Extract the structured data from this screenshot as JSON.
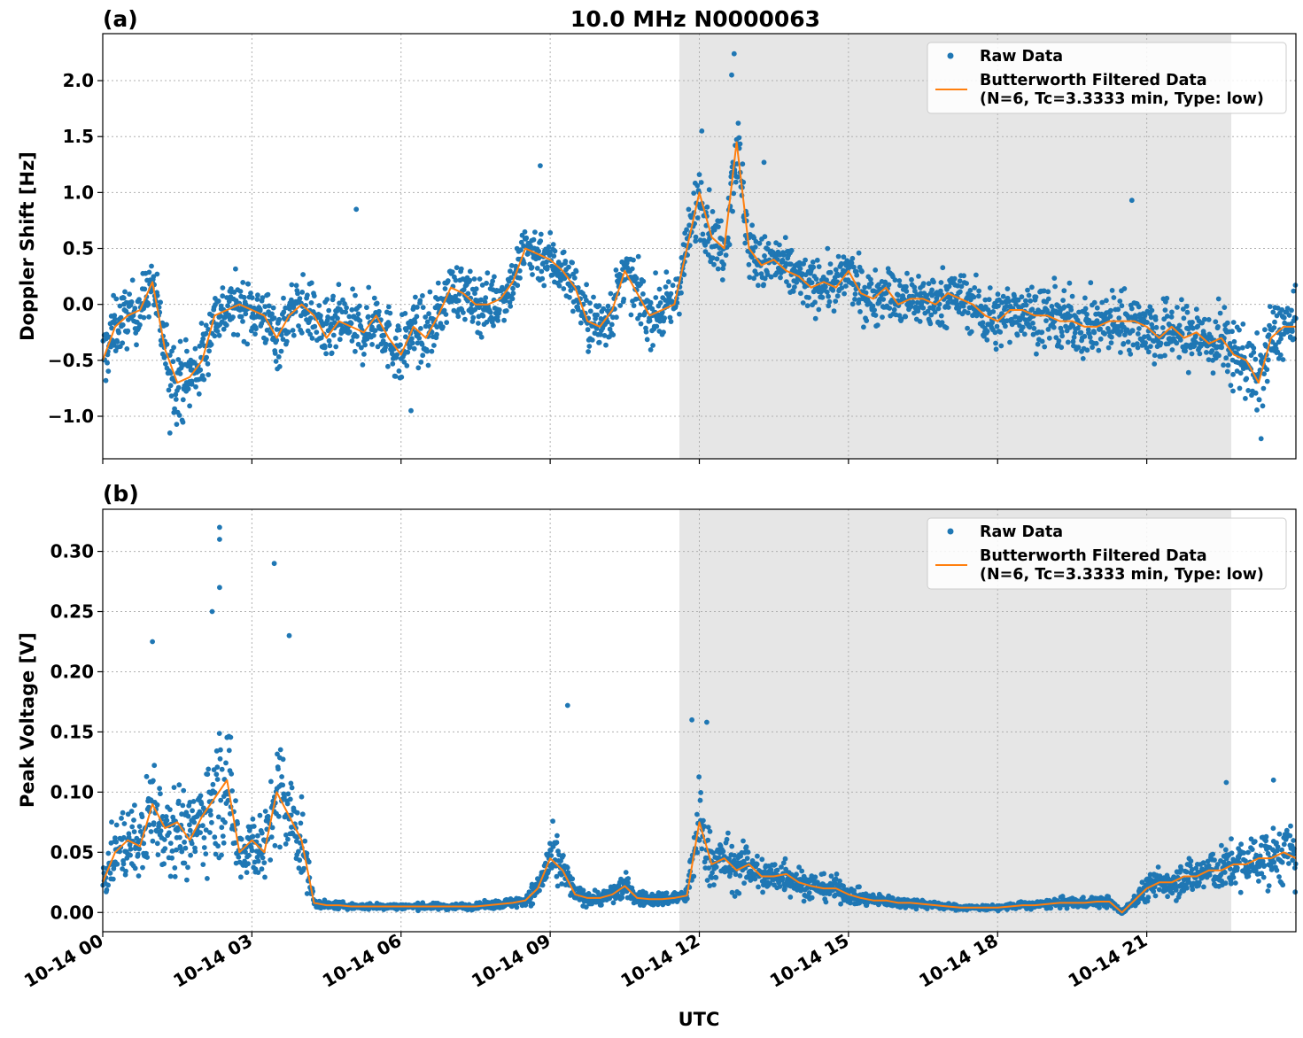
{
  "figure": {
    "title": "10.0 MHz N0000063",
    "xlabel": "UTC",
    "x_tick_labels": [
      "10-14 00",
      "10-14 03",
      "10-14 06",
      "10-14 09",
      "10-14 12",
      "10-14 15",
      "10-14 18",
      "10-14 21"
    ],
    "colors": {
      "raw": "#1f77b4",
      "filtered": "#ff7f0e",
      "shade": "#e6e6e6",
      "grid": "#b0b0b0"
    }
  },
  "chart_data": [
    {
      "type": "scatter",
      "panel_label": "(a)",
      "ylabel": "Doppler Shift [Hz]",
      "x_unit": "hours UTC on 10-14",
      "xlim": [
        0,
        24
      ],
      "ylim": [
        -1.38,
        2.42
      ],
      "y_ticks": [
        -1.0,
        -0.5,
        0.0,
        0.5,
        1.0,
        1.5,
        2.0
      ],
      "y_tick_labels": [
        "−1.0",
        "−0.5",
        "0.0",
        "0.5",
        "1.0",
        "1.5",
        "2.0"
      ],
      "grid": true,
      "shaded_region_x": [
        11.6,
        22.7
      ],
      "legend": {
        "placement": "top-right",
        "entries": [
          "Raw Data",
          "Butterworth Filtered Data",
          "(N=6, Tc=3.3333 min, Type: low)"
        ]
      },
      "series": [
        {
          "name": "Butterworth Filtered Data",
          "style": "line",
          "x": [
            0,
            0.25,
            0.5,
            0.75,
            1.0,
            1.25,
            1.5,
            1.75,
            2.0,
            2.25,
            2.5,
            2.75,
            3.0,
            3.25,
            3.5,
            3.75,
            4.0,
            4.25,
            4.5,
            4.75,
            5.0,
            5.25,
            5.5,
            5.75,
            6.0,
            6.25,
            6.5,
            6.75,
            7.0,
            7.25,
            7.5,
            7.75,
            8.0,
            8.25,
            8.5,
            8.75,
            9.0,
            9.25,
            9.5,
            9.75,
            10.0,
            10.25,
            10.5,
            10.75,
            11.0,
            11.25,
            11.5,
            11.75,
            12.0,
            12.25,
            12.5,
            12.75,
            13.0,
            13.25,
            13.5,
            13.75,
            14.0,
            14.25,
            14.5,
            14.75,
            15.0,
            15.25,
            15.5,
            15.75,
            16.0,
            16.25,
            16.5,
            16.75,
            17.0,
            17.25,
            17.5,
            17.75,
            18.0,
            18.25,
            18.5,
            18.75,
            19.0,
            19.25,
            19.5,
            19.75,
            20.0,
            20.25,
            20.5,
            20.75,
            21.0,
            21.25,
            21.5,
            21.75,
            22.0,
            22.25,
            22.5,
            22.75,
            23.0,
            23.25,
            23.5,
            23.75,
            24.0
          ],
          "y": [
            -0.5,
            -0.2,
            -0.1,
            -0.05,
            0.2,
            -0.4,
            -0.7,
            -0.65,
            -0.5,
            -0.1,
            -0.05,
            0.0,
            -0.05,
            -0.1,
            -0.3,
            -0.1,
            0.0,
            -0.1,
            -0.3,
            -0.15,
            -0.2,
            -0.25,
            -0.1,
            -0.3,
            -0.45,
            -0.2,
            -0.3,
            -0.1,
            0.15,
            0.1,
            0.0,
            0.0,
            0.05,
            0.2,
            0.5,
            0.45,
            0.4,
            0.3,
            0.15,
            -0.15,
            -0.2,
            -0.05,
            0.3,
            0.1,
            -0.1,
            -0.05,
            0.0,
            0.5,
            1.0,
            0.6,
            0.5,
            1.45,
            0.5,
            0.35,
            0.4,
            0.3,
            0.25,
            0.15,
            0.2,
            0.15,
            0.3,
            0.1,
            0.05,
            0.15,
            0.0,
            0.05,
            0.05,
            0.0,
            0.1,
            0.05,
            0.0,
            -0.1,
            -0.15,
            -0.05,
            -0.05,
            -0.1,
            -0.1,
            -0.15,
            -0.15,
            -0.2,
            -0.2,
            -0.15,
            -0.15,
            -0.15,
            -0.2,
            -0.3,
            -0.2,
            -0.3,
            -0.25,
            -0.35,
            -0.3,
            -0.45,
            -0.5,
            -0.7,
            -0.3,
            -0.2,
            -0.2
          ]
        },
        {
          "name": "Raw Data",
          "style": "points",
          "spread": 0.22,
          "spikes": [
            {
              "x": 12.7,
              "y": 2.24
            },
            {
              "x": 12.65,
              "y": 2.05
            },
            {
              "x": 8.8,
              "y": 1.24
            },
            {
              "x": 13.3,
              "y": 1.27
            },
            {
              "x": 20.7,
              "y": 0.93
            },
            {
              "x": 5.1,
              "y": 0.85
            },
            {
              "x": 12.05,
              "y": 1.55
            },
            {
              "x": 1.35,
              "y": -1.15
            },
            {
              "x": 23.3,
              "y": -1.2
            },
            {
              "x": 6.2,
              "y": -0.95
            }
          ]
        }
      ]
    },
    {
      "type": "scatter",
      "panel_label": "(b)",
      "ylabel": "Peak Voltage [V]",
      "x_unit": "hours UTC on 10-14",
      "xlim": [
        0,
        24
      ],
      "ylim": [
        -0.016,
        0.335
      ],
      "y_ticks": [
        0.0,
        0.05,
        0.1,
        0.15,
        0.2,
        0.25,
        0.3
      ],
      "y_tick_labels": [
        "0.00",
        "0.05",
        "0.10",
        "0.15",
        "0.20",
        "0.25",
        "0.30"
      ],
      "grid": true,
      "shaded_region_x": [
        11.6,
        22.7
      ],
      "legend": {
        "placement": "top-right",
        "entries": [
          "Raw Data",
          "Butterworth Filtered Data",
          "(N=6, Tc=3.3333 min, Type: low)"
        ]
      },
      "series": [
        {
          "name": "Butterworth Filtered Data",
          "style": "line",
          "x": [
            0,
            0.25,
            0.5,
            0.75,
            1.0,
            1.25,
            1.5,
            1.75,
            2.0,
            2.25,
            2.5,
            2.75,
            3.0,
            3.25,
            3.5,
            3.75,
            4.0,
            4.25,
            4.5,
            4.75,
            5.0,
            5.25,
            5.5,
            5.75,
            6.0,
            6.25,
            6.5,
            6.75,
            7.0,
            7.25,
            7.5,
            7.75,
            8.0,
            8.25,
            8.5,
            8.75,
            9.0,
            9.25,
            9.5,
            9.75,
            10.0,
            10.25,
            10.5,
            10.75,
            11.0,
            11.25,
            11.5,
            11.75,
            12.0,
            12.25,
            12.5,
            12.75,
            13.0,
            13.25,
            13.5,
            13.75,
            14.0,
            14.25,
            14.5,
            14.75,
            15.0,
            15.25,
            15.5,
            15.75,
            16.0,
            16.25,
            16.5,
            16.75,
            17.0,
            17.25,
            17.5,
            17.75,
            18.0,
            18.25,
            18.5,
            18.75,
            19.0,
            19.25,
            19.5,
            19.75,
            20.0,
            20.25,
            20.5,
            20.75,
            21.0,
            21.25,
            21.5,
            21.75,
            22.0,
            22.25,
            22.5,
            22.75,
            23.0,
            23.25,
            23.5,
            23.75,
            24.0
          ],
          "y": [
            0.025,
            0.05,
            0.06,
            0.055,
            0.09,
            0.07,
            0.075,
            0.06,
            0.08,
            0.095,
            0.11,
            0.05,
            0.06,
            0.05,
            0.1,
            0.08,
            0.06,
            0.008,
            0.006,
            0.006,
            0.005,
            0.005,
            0.005,
            0.005,
            0.005,
            0.005,
            0.005,
            0.005,
            0.005,
            0.005,
            0.005,
            0.006,
            0.007,
            0.008,
            0.01,
            0.02,
            0.045,
            0.035,
            0.015,
            0.012,
            0.012,
            0.015,
            0.022,
            0.012,
            0.011,
            0.011,
            0.012,
            0.014,
            0.075,
            0.04,
            0.045,
            0.035,
            0.04,
            0.03,
            0.03,
            0.032,
            0.025,
            0.022,
            0.02,
            0.02,
            0.015,
            0.012,
            0.01,
            0.01,
            0.008,
            0.008,
            0.007,
            0.006,
            0.005,
            0.004,
            0.004,
            0.004,
            0.004,
            0.005,
            0.006,
            0.006,
            0.007,
            0.008,
            0.008,
            0.008,
            0.009,
            0.009,
            0.0,
            0.01,
            0.02,
            0.025,
            0.025,
            0.03,
            0.03,
            0.035,
            0.035,
            0.04,
            0.04,
            0.045,
            0.045,
            0.05,
            0.045
          ]
        },
        {
          "name": "Raw Data",
          "style": "points",
          "spread_fraction": 0.5,
          "spikes": [
            {
              "x": 2.35,
              "y": 0.32
            },
            {
              "x": 2.35,
              "y": 0.31
            },
            {
              "x": 3.45,
              "y": 0.29
            },
            {
              "x": 2.35,
              "y": 0.27
            },
            {
              "x": 2.2,
              "y": 0.25
            },
            {
              "x": 3.75,
              "y": 0.23
            },
            {
              "x": 1.0,
              "y": 0.225
            },
            {
              "x": 9.35,
              "y": 0.172
            },
            {
              "x": 11.85,
              "y": 0.16
            },
            {
              "x": 12.15,
              "y": 0.158
            },
            {
              "x": 22.6,
              "y": 0.108
            },
            {
              "x": 23.55,
              "y": 0.11
            }
          ]
        }
      ]
    }
  ]
}
